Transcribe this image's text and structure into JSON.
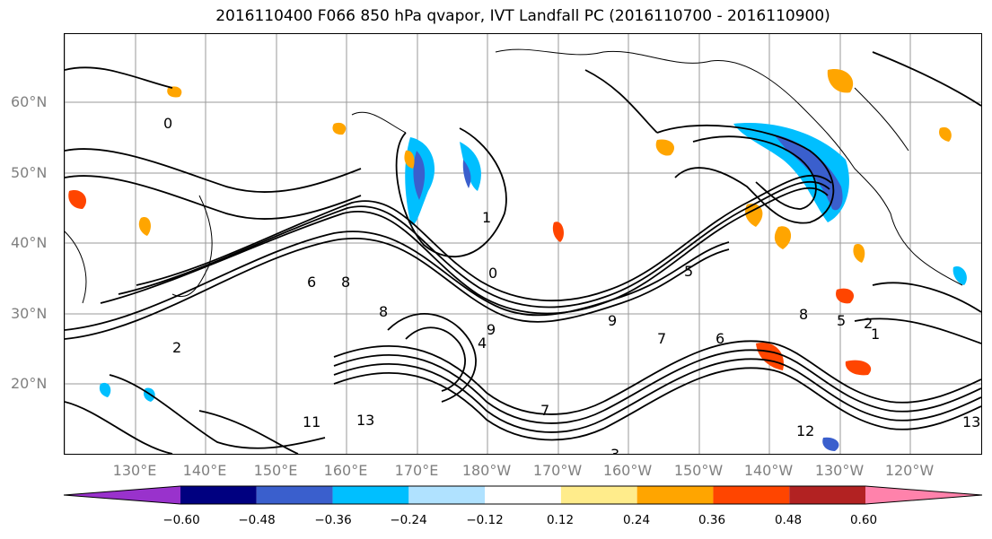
{
  "title": "2016110400 F066 850 hPa qvapor, IVT Landfall PC (2016110700 - 2016110900)",
  "latitude_labels": [
    "60°N",
    "50°N",
    "40°N",
    "30°N",
    "20°N"
  ],
  "longitude_labels": [
    "130°E",
    "140°E",
    "150°E",
    "160°E",
    "170°E",
    "180°W",
    "170°W",
    "160°W",
    "150°W",
    "140°W",
    "130°W",
    "120°W"
  ],
  "contour_labels": [
    "1",
    "0",
    "2",
    "9",
    "8",
    "7",
    "6",
    "5",
    "6",
    "8",
    "9",
    "7",
    "8",
    "5",
    "2",
    "1",
    "13",
    "13",
    "11",
    "12",
    "4",
    "3",
    "0"
  ],
  "colorbar": {
    "ticks": [
      "−0.60",
      "−0.48",
      "−0.36",
      "−0.24",
      "−0.12",
      "0.12",
      "0.24",
      "0.36",
      "0.48",
      "0.60"
    ],
    "colors": [
      "#9932cc",
      "#000080",
      "#3a5fcd",
      "#00bfff",
      "#b0e2ff",
      "#ffffff",
      "#ffec8b",
      "#ffa500",
      "#ff4500",
      "#b22222",
      "#ff82ab"
    ]
  }
}
